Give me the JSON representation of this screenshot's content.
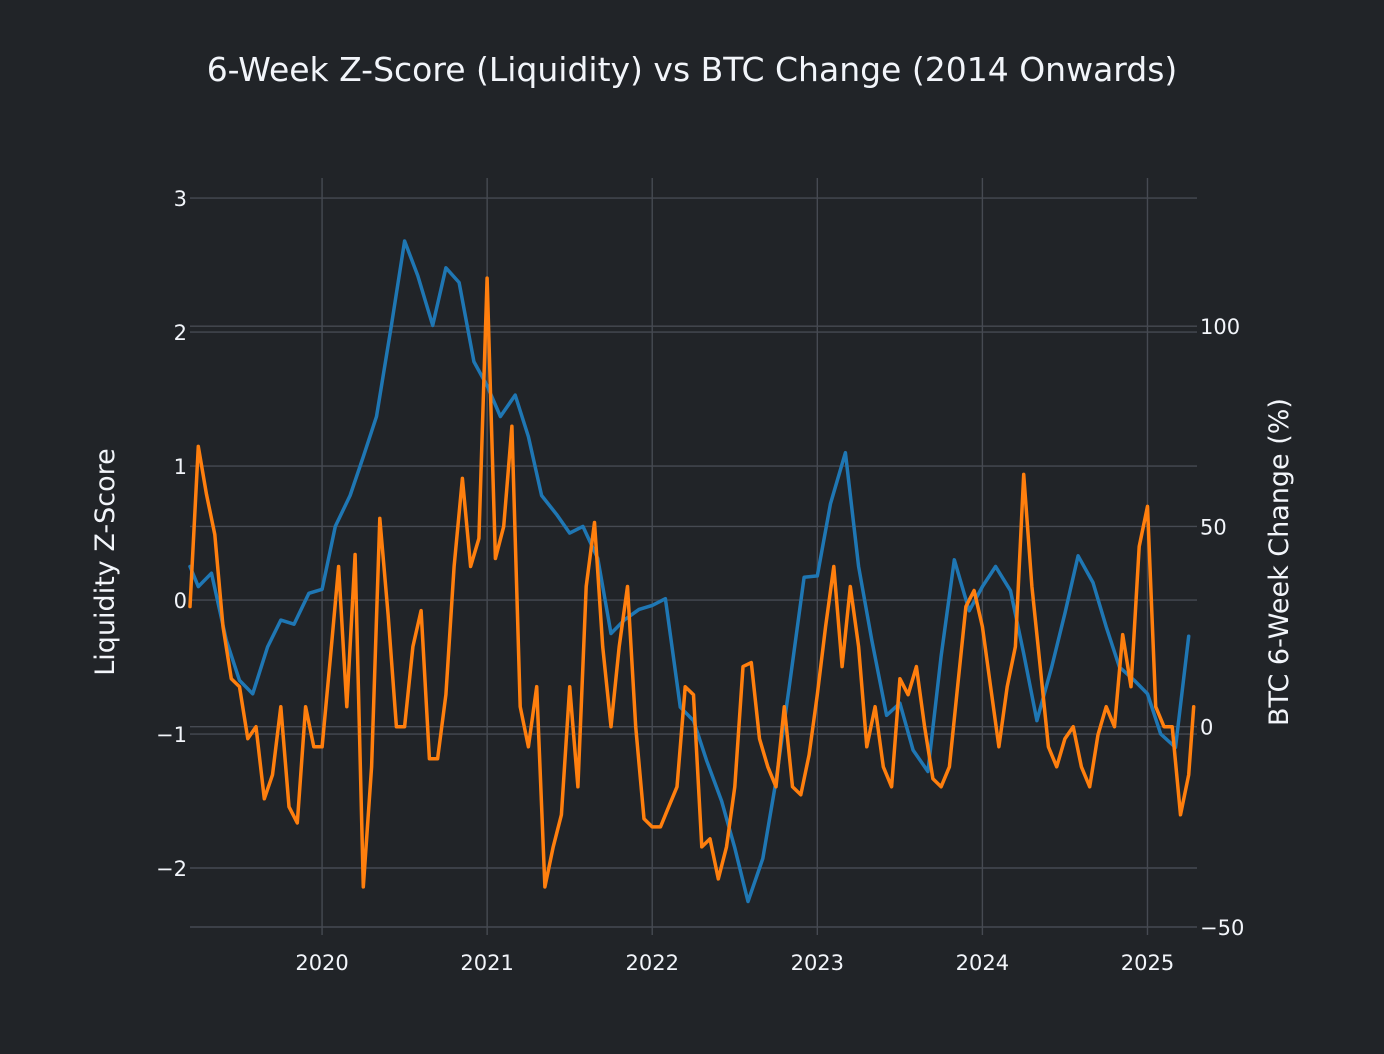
{
  "chart_data": {
    "type": "line",
    "title": "6-Week Z-Score (Liquidity) vs BTC Change (2014 Onwards)",
    "xlabel": "",
    "y_left_label": "Liquidity Z-Score",
    "y_right_label": "BTC 6-Week Change (%)",
    "x_range": [
      2019.2,
      2025.3
    ],
    "y_left_range": [
      -2.5,
      3.15
    ],
    "y_right_range": [
      -52,
      137
    ],
    "x_ticks": [
      {
        "value": 2020,
        "label": "2020"
      },
      {
        "value": 2021,
        "label": "2021"
      },
      {
        "value": 2022,
        "label": "2022"
      },
      {
        "value": 2023,
        "label": "2023"
      },
      {
        "value": 2024,
        "label": "2024"
      },
      {
        "value": 2025,
        "label": "2025"
      }
    ],
    "y_left_ticks": [
      {
        "value": -2,
        "label": "−2"
      },
      {
        "value": -1,
        "label": "−1"
      },
      {
        "value": 0,
        "label": "0"
      },
      {
        "value": 1,
        "label": "1"
      },
      {
        "value": 2,
        "label": "2"
      },
      {
        "value": 3,
        "label": "3"
      }
    ],
    "y_right_ticks": [
      {
        "value": -50,
        "label": "−50"
      },
      {
        "value": 0,
        "label": "0"
      },
      {
        "value": 50,
        "label": "50"
      },
      {
        "value": 100,
        "label": "100"
      }
    ],
    "colors": {
      "liquidity": "#1f77b4",
      "btc": "#ff7f0e",
      "grid": "#464a52",
      "background": "#212428",
      "text": "#f2f5fa"
    },
    "series": [
      {
        "name": "Liquidity Z-Score",
        "axis": "left",
        "x": [
          2019.2,
          2019.25,
          2019.33,
          2019.42,
          2019.5,
          2019.58,
          2019.67,
          2019.75,
          2019.83,
          2019.92,
          2020.0,
          2020.08,
          2020.17,
          2020.25,
          2020.33,
          2020.42,
          2020.5,
          2020.58,
          2020.67,
          2020.75,
          2020.83,
          2020.92,
          2021.0,
          2021.08,
          2021.17,
          2021.25,
          2021.33,
          2021.42,
          2021.5,
          2021.58,
          2021.67,
          2021.75,
          2021.83,
          2021.92,
          2022.0,
          2022.08,
          2022.17,
          2022.25,
          2022.33,
          2022.42,
          2022.5,
          2022.58,
          2022.67,
          2022.75,
          2022.83,
          2022.92,
          2023.0,
          2023.08,
          2023.17,
          2023.25,
          2023.33,
          2023.42,
          2023.5,
          2023.58,
          2023.67,
          2023.75,
          2023.83,
          2023.92,
          2024.0,
          2024.08,
          2024.17,
          2024.25,
          2024.33,
          2024.42,
          2024.5,
          2024.58,
          2024.67,
          2024.75,
          2024.83,
          2024.92,
          2025.0,
          2025.08,
          2025.17,
          2025.25
        ],
        "values": [
          0.25,
          0.1,
          0.2,
          -0.3,
          -0.6,
          -0.7,
          -0.35,
          -0.15,
          -0.18,
          0.05,
          0.08,
          0.55,
          0.78,
          1.07,
          1.37,
          2.05,
          2.68,
          2.42,
          2.05,
          2.48,
          2.37,
          1.78,
          1.6,
          1.37,
          1.53,
          1.22,
          0.78,
          0.64,
          0.5,
          0.55,
          0.31,
          -0.25,
          -0.15,
          -0.07,
          -0.04,
          0.01,
          -0.8,
          -0.9,
          -1.2,
          -1.5,
          -1.85,
          -2.25,
          -1.93,
          -1.35,
          -0.65,
          0.17,
          0.18,
          0.72,
          1.1,
          0.25,
          -0.3,
          -0.86,
          -0.77,
          -1.12,
          -1.28,
          -0.42,
          0.3,
          -0.08,
          0.1,
          0.25,
          0.07,
          -0.4,
          -0.9,
          -0.5,
          -0.1,
          0.33,
          0.13,
          -0.2,
          -0.5,
          -0.6,
          -0.7,
          -1.0,
          -1.1,
          -0.27
        ]
      },
      {
        "name": "BTC 6-Week Change (%)",
        "axis": "right",
        "x": [
          2019.2,
          2019.25,
          2019.3,
          2019.35,
          2019.4,
          2019.45,
          2019.5,
          2019.55,
          2019.6,
          2019.65,
          2019.7,
          2019.75,
          2019.8,
          2019.85,
          2019.9,
          2019.95,
          2020.0,
          2020.05,
          2020.1,
          2020.15,
          2020.2,
          2020.25,
          2020.3,
          2020.35,
          2020.4,
          2020.45,
          2020.5,
          2020.55,
          2020.6,
          2020.65,
          2020.7,
          2020.75,
          2020.8,
          2020.85,
          2020.9,
          2020.95,
          2021.0,
          2021.05,
          2021.1,
          2021.15,
          2021.2,
          2021.25,
          2021.3,
          2021.35,
          2021.4,
          2021.45,
          2021.5,
          2021.55,
          2021.6,
          2021.65,
          2021.7,
          2021.75,
          2021.8,
          2021.85,
          2021.9,
          2021.95,
          2022.0,
          2022.05,
          2022.1,
          2022.15,
          2022.2,
          2022.25,
          2022.3,
          2022.35,
          2022.4,
          2022.45,
          2022.5,
          2022.55,
          2022.6,
          2022.65,
          2022.7,
          2022.75,
          2022.8,
          2022.85,
          2022.9,
          2022.95,
          2023.0,
          2023.05,
          2023.1,
          2023.15,
          2023.2,
          2023.25,
          2023.3,
          2023.35,
          2023.4,
          2023.45,
          2023.5,
          2023.55,
          2023.6,
          2023.65,
          2023.7,
          2023.75,
          2023.8,
          2023.85,
          2023.9,
          2023.95,
          2024.0,
          2024.05,
          2024.1,
          2024.15,
          2024.2,
          2024.25,
          2024.3,
          2024.35,
          2024.4,
          2024.45,
          2024.5,
          2024.55,
          2024.6,
          2024.65,
          2024.7,
          2024.75,
          2024.8,
          2024.85,
          2024.9,
          2024.95,
          2025.0,
          2025.05,
          2025.1,
          2025.15,
          2025.2,
          2025.25,
          2025.28
        ],
        "values": [
          30,
          70,
          58,
          48,
          25,
          12,
          10,
          -3,
          0,
          -18,
          -12,
          5,
          -20,
          -24,
          5,
          -5,
          -5,
          17,
          40,
          5,
          43,
          -40,
          -10,
          52,
          28,
          0,
          0,
          20,
          29,
          -8,
          -8,
          8,
          40,
          62,
          40,
          47,
          112,
          42,
          50,
          75,
          5,
          -5,
          10,
          -40,
          -30,
          -22,
          10,
          -15,
          35,
          51,
          20,
          0,
          20,
          35,
          0,
          -23,
          -25,
          -25,
          -20,
          -15,
          10,
          8,
          -30,
          -28,
          -38,
          -30,
          -15,
          15,
          16,
          -3,
          -10,
          -15,
          5,
          -15,
          -17,
          -7,
          8,
          25,
          40,
          15,
          35,
          20,
          -5,
          5,
          -10,
          -15,
          12,
          8,
          15,
          0,
          -13,
          -15,
          -10,
          10,
          30,
          34,
          25,
          10,
          -5,
          10,
          20,
          63,
          35,
          15,
          -5,
          -10,
          -3,
          0,
          -10,
          -15,
          -2,
          5,
          0,
          23,
          10,
          45,
          55,
          5,
          0,
          0,
          -22,
          -12,
          5
        ]
      }
    ]
  }
}
